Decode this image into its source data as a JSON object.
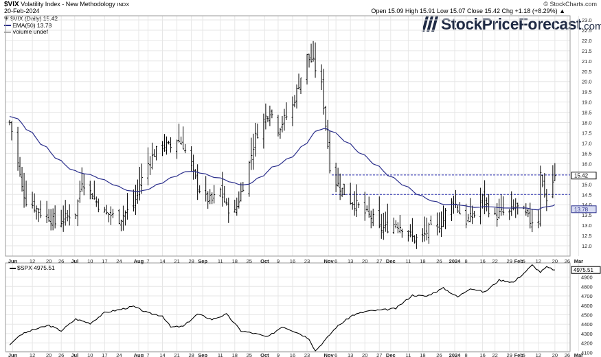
{
  "header": {
    "symbol": "$VIX",
    "name": "Volatility Index - New Methodology",
    "exchange": "INDX",
    "date": "20-Feb-2024",
    "ohlc": "Open 15.09  High 15.91  Low 15.07  Close 15.42  Chg +1.18 (+8.29%) ▲",
    "credit": "© StockCharts.com"
  },
  "legend": {
    "main": "$VIX (Daily) 15.42",
    "ema": "EMA(50) 13.78",
    "volume": "Volume undef"
  },
  "logo": {
    "name": "StockPriceForecast",
    "tld": ".com"
  },
  "spx_legend": "$SPX 4975.51",
  "colors": {
    "bars": "#000000",
    "ema": "#2b2f8c",
    "grid": "#e6e6e6",
    "hline": "#2b2fb0",
    "lastLabel": "#000000",
    "emaLabelBg": "#d8dcf2"
  },
  "chart_data": [
    {
      "type": "ohlc",
      "title": "$VIX (Daily) 15.42",
      "ylim": [
        11.5,
        23.2
      ],
      "y_ticks": [
        12.0,
        12.5,
        13.0,
        13.5,
        14.0,
        14.5,
        15.0,
        15.5,
        16.0,
        16.5,
        17.0,
        17.5,
        18.0,
        18.5,
        19.0,
        19.5,
        20.0,
        20.5,
        21.0,
        21.5,
        22.0,
        22.5,
        23.0
      ],
      "x_labels": [
        "Jun",
        "12",
        "20",
        "26",
        "Jul",
        "10",
        "17",
        "24",
        "Aug",
        "7",
        "14",
        "21",
        "28",
        "Sep",
        "11",
        "18",
        "25",
        "Oct",
        "9",
        "16",
        "23",
        "Nov",
        "6",
        "13",
        "20",
        "27",
        "Dec",
        "11",
        "18",
        "26",
        "2024",
        "8",
        "16",
        "22",
        "29",
        "Feb",
        "5",
        "12",
        "20",
        "26",
        "Mar"
      ],
      "month_labels": [
        "Jun",
        "Jul",
        "Aug",
        "Sep",
        "Oct",
        "Nov",
        "Dec",
        "2024",
        "Feb",
        "Mar"
      ],
      "close_series": [
        [
          "Jun 1",
          18.0
        ],
        [
          "Jun 3",
          17.2
        ],
        [
          "Jun 5",
          16.0
        ],
        [
          "Jun 7",
          14.8
        ],
        [
          "Jun 9",
          14.2
        ],
        [
          "Jun 12",
          14.0
        ],
        [
          "Jun 16",
          13.6
        ],
        [
          "Jun 20",
          13.4
        ],
        [
          "Jun 23",
          13.1
        ],
        [
          "Jun 26",
          13.2
        ],
        [
          "Jun 30",
          13.5
        ],
        [
          "Jul 3",
          13.6
        ],
        [
          "Jul 6",
          15.2
        ],
        [
          "Jul 10",
          14.6
        ],
        [
          "Jul 14",
          14.0
        ],
        [
          "Jul 17",
          13.6
        ],
        [
          "Jul 20",
          13.5
        ],
        [
          "Jul 24",
          13.3
        ],
        [
          "Jul 27",
          13.6
        ],
        [
          "Jul 31",
          13.9
        ],
        [
          "Aug 3",
          15.0
        ],
        [
          "Aug 7",
          16.0
        ],
        [
          "Aug 10",
          16.5
        ],
        [
          "Aug 14",
          16.9
        ],
        [
          "Aug 18",
          16.8
        ],
        [
          "Aug 21",
          17.2
        ],
        [
          "Aug 24",
          16.9
        ],
        [
          "Aug 28",
          15.8
        ],
        [
          "Aug 31",
          14.9
        ],
        [
          "Sep 4",
          14.3
        ],
        [
          "Sep 7",
          14.2
        ],
        [
          "Sep 11",
          14.7
        ],
        [
          "Sep 14",
          13.9
        ],
        [
          "Sep 18",
          13.6
        ],
        [
          "Sep 21",
          14.6
        ],
        [
          "Sep 25",
          16.0
        ],
        [
          "Sep 28",
          17.3
        ],
        [
          "Oct 2",
          18.1
        ],
        [
          "Oct 5",
          18.6
        ],
        [
          "Oct 9",
          17.7
        ],
        [
          "Oct 13",
          18.3
        ],
        [
          "Oct 16",
          18.8
        ],
        [
          "Oct 19",
          19.9
        ],
        [
          "Oct 23",
          21.2
        ],
        [
          "Oct 26",
          20.9
        ],
        [
          "Oct 30",
          19.8
        ],
        [
          "Nov 1",
          17.9
        ],
        [
          "Nov 3",
          15.9
        ],
        [
          "Nov 6",
          15.1
        ],
        [
          "Nov 10",
          14.6
        ],
        [
          "Nov 13",
          14.2
        ],
        [
          "Nov 17",
          13.9
        ],
        [
          "Nov 20",
          13.6
        ],
        [
          "Nov 24",
          13.3
        ],
        [
          "Nov 27",
          12.8
        ],
        [
          "Dec 1",
          12.9
        ],
        [
          "Dec 5",
          13.1
        ],
        [
          "Dec 8",
          12.9
        ],
        [
          "Dec 11",
          12.6
        ],
        [
          "Dec 14",
          12.3
        ],
        [
          "Dec 18",
          12.4
        ],
        [
          "Dec 21",
          12.8
        ],
        [
          "Dec 26",
          12.9
        ],
        [
          "Dec 29",
          13.6
        ],
        [
          "Jan 2",
          14.2
        ],
        [
          "Jan 5",
          13.6
        ],
        [
          "Jan 8",
          13.2
        ],
        [
          "Jan 12",
          13.5
        ],
        [
          "Jan 16",
          14.3
        ],
        [
          "Jan 19",
          13.8
        ],
        [
          "Jan 22",
          13.4
        ],
        [
          "Jan 25",
          13.6
        ],
        [
          "Jan 29",
          13.6
        ],
        [
          "Feb 1",
          13.9
        ],
        [
          "Feb 5",
          13.6
        ],
        [
          "Feb 8",
          13.2
        ],
        [
          "Feb 12",
          13.3
        ],
        [
          "Feb 13",
          15.7
        ],
        [
          "Feb 14",
          14.9
        ],
        [
          "Feb 16",
          14.2
        ],
        [
          "Feb 20",
          15.42
        ]
      ],
      "ema50_value": 13.78,
      "last_close": 15.42,
      "reference_lines": [
        15.45,
        14.5
      ]
    },
    {
      "type": "line",
      "title": "$SPX 4975.51",
      "ylim": [
        4110,
        5050
      ],
      "y_ticks": [
        4100,
        4200,
        4300,
        4400,
        4500,
        4600,
        4700,
        4800,
        4900
      ],
      "last_value": 4975.51,
      "series": [
        [
          "Jun 1",
          4179
        ],
        [
          "Jun 6",
          4285
        ],
        [
          "Jun 12",
          4338
        ],
        [
          "Jun 20",
          4388
        ],
        [
          "Jun 26",
          4330
        ],
        [
          "Jul 3",
          4455
        ],
        [
          "Jul 10",
          4409
        ],
        [
          "Jul 17",
          4522
        ],
        [
          "Jul 24",
          4554
        ],
        [
          "Jul 31",
          4588
        ],
        [
          "Aug 7",
          4518
        ],
        [
          "Aug 14",
          4489
        ],
        [
          "Aug 18",
          4369
        ],
        [
          "Aug 24",
          4376
        ],
        [
          "Aug 31",
          4507
        ],
        [
          "Sep 7",
          4451
        ],
        [
          "Sep 14",
          4505
        ],
        [
          "Sep 21",
          4330
        ],
        [
          "Sep 28",
          4299
        ],
        [
          "Oct 4",
          4263
        ],
        [
          "Oct 11",
          4376
        ],
        [
          "Oct 18",
          4314
        ],
        [
          "Oct 24",
          4247
        ],
        [
          "Oct 27",
          4117
        ],
        [
          "Nov 1",
          4237
        ],
        [
          "Nov 6",
          4365
        ],
        [
          "Nov 14",
          4495
        ],
        [
          "Nov 21",
          4538
        ],
        [
          "Nov 28",
          4550
        ],
        [
          "Dec 5",
          4567
        ],
        [
          "Dec 13",
          4707
        ],
        [
          "Dec 20",
          4698
        ],
        [
          "Dec 28",
          4783
        ],
        [
          "Jan 4",
          4688
        ],
        [
          "Jan 10",
          4783
        ],
        [
          "Jan 17",
          4739
        ],
        [
          "Jan 24",
          4868
        ],
        [
          "Jan 31",
          4845
        ],
        [
          "Feb 5",
          4942
        ],
        [
          "Feb 9",
          5026
        ],
        [
          "Feb 13",
          4953
        ],
        [
          "Feb 16",
          5005
        ],
        [
          "Feb 20",
          4975.51
        ]
      ]
    }
  ]
}
